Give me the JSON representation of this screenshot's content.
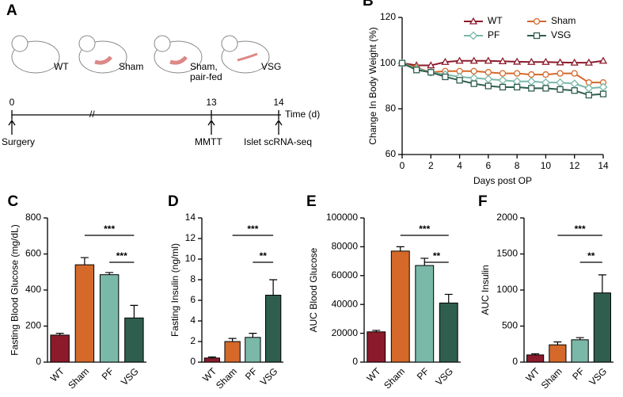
{
  "diagram": {
    "label": "A",
    "mice": [
      "WT",
      "Sham",
      "Sham,",
      "pair-fed",
      "VSG"
    ],
    "timeline": {
      "ticks": [
        "0",
        "13",
        "14"
      ],
      "unit": "Time (d)",
      "events": [
        "Surgery",
        "MMTT",
        "Islet scRNA-seq"
      ]
    }
  },
  "chart_data": [
    {
      "type": "line",
      "label": "B",
      "ylabel": "Change In Body Weight (%)",
      "xlabel": "Days post OP",
      "x": [
        0,
        1,
        2,
        3,
        4,
        5,
        6,
        7,
        8,
        9,
        10,
        11,
        12,
        13,
        14
      ],
      "xlim": [
        0,
        14
      ],
      "xticks": [
        0,
        2,
        4,
        6,
        8,
        10,
        12,
        14
      ],
      "ylim": [
        60,
        120
      ],
      "yticks": [
        60,
        80,
        100,
        120
      ],
      "series": [
        {
          "name": "WT",
          "color": "#8b1a2b",
          "marker": "triangle",
          "values": [
            100,
            99,
            99,
            100.5,
            101,
            101,
            101,
            100.8,
            100.6,
            100.5,
            100.5,
            100.3,
            100.2,
            100.2,
            101
          ]
        },
        {
          "name": "Sham",
          "color": "#d4692a",
          "marker": "circle",
          "values": [
            100,
            98,
            96,
            96.5,
            96.5,
            96.5,
            96,
            95.5,
            95.5,
            95,
            95,
            95.5,
            95.5,
            91.5,
            91.5
          ]
        },
        {
          "name": "PF",
          "color": "#7ab8a8",
          "marker": "diamond",
          "values": [
            100,
            97.5,
            96,
            95,
            94,
            93.5,
            93,
            92.5,
            92,
            92,
            91.5,
            91.5,
            91,
            89,
            89.5
          ]
        },
        {
          "name": "VSG",
          "color": "#2f5e4e",
          "marker": "square",
          "values": [
            100,
            97,
            96,
            94,
            92.5,
            91,
            90,
            89.5,
            89.5,
            89,
            89,
            88.5,
            88,
            86,
            86.5
          ]
        }
      ]
    },
    {
      "type": "bar",
      "label": "C",
      "ylabel": "Fasting Blood Glucose (mg/dL)",
      "categories": [
        "WT",
        "Sham",
        "PF",
        "VSG"
      ],
      "colors": [
        "#8b1a2b",
        "#d4692a",
        "#7ab8a8",
        "#2f5e4e"
      ],
      "values": [
        150,
        540,
        485,
        245
      ],
      "errors": [
        10,
        40,
        12,
        70
      ],
      "ylim": [
        0,
        800
      ],
      "yticks": [
        0,
        200,
        400,
        600,
        800
      ],
      "annotations": [
        {
          "text": "***",
          "between": [
            "Sham",
            "VSG"
          ]
        },
        {
          "text": "***",
          "between": [
            "PF",
            "VSG"
          ]
        }
      ]
    },
    {
      "type": "bar",
      "label": "D",
      "ylabel": "Fasting Insulin (ng/ml)",
      "categories": [
        "WT",
        "Sham",
        "PF",
        "VSG"
      ],
      "colors": [
        "#8b1a2b",
        "#d4692a",
        "#7ab8a8",
        "#2f5e4e"
      ],
      "values": [
        0.4,
        2.0,
        2.4,
        6.5
      ],
      "errors": [
        0.1,
        0.3,
        0.4,
        1.5
      ],
      "ylim": [
        0,
        14
      ],
      "yticks": [
        0,
        2,
        4,
        6,
        8,
        10,
        12,
        14
      ],
      "annotations": [
        {
          "text": "***",
          "between": [
            "Sham",
            "VSG"
          ]
        },
        {
          "text": "**",
          "between": [
            "PF",
            "VSG"
          ]
        }
      ]
    },
    {
      "type": "bar",
      "label": "E",
      "ylabel": "AUC Blood Glucose",
      "categories": [
        "WT",
        "Sham",
        "PF",
        "VSG"
      ],
      "colors": [
        "#8b1a2b",
        "#d4692a",
        "#7ab8a8",
        "#2f5e4e"
      ],
      "values": [
        21000,
        77000,
        67000,
        41000
      ],
      "errors": [
        1000,
        3000,
        5000,
        6000
      ],
      "ylim": [
        0,
        100000
      ],
      "yticks": [
        0,
        20000,
        40000,
        60000,
        80000,
        100000
      ],
      "annotations": [
        {
          "text": "***",
          "between": [
            "Sham",
            "VSG"
          ]
        },
        {
          "text": "**",
          "between": [
            "PF",
            "VSG"
          ]
        }
      ]
    },
    {
      "type": "bar",
      "label": "F",
      "ylabel": "AUC Insulin",
      "categories": [
        "WT",
        "Sham",
        "PF",
        "VSG"
      ],
      "colors": [
        "#8b1a2b",
        "#d4692a",
        "#7ab8a8",
        "#2f5e4e"
      ],
      "values": [
        100,
        240,
        310,
        960
      ],
      "errors": [
        15,
        40,
        30,
        250
      ],
      "ylim": [
        0,
        2000
      ],
      "yticks": [
        0,
        500,
        1000,
        1500,
        2000
      ],
      "annotations": [
        {
          "text": "***",
          "between": [
            "Sham",
            "VSG"
          ]
        },
        {
          "text": "**",
          "between": [
            "PF",
            "VSG"
          ]
        }
      ]
    }
  ]
}
